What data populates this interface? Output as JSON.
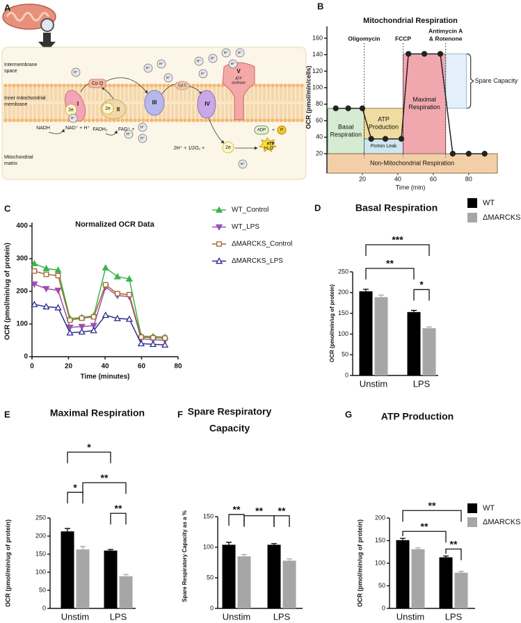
{
  "panel_labels": [
    "A",
    "B",
    "C",
    "D",
    "E",
    "F",
    "G"
  ],
  "diagram": {
    "regions": [
      [
        "Intermembrane",
        "space"
      ],
      [
        "Inner mitochondrial",
        "membrane"
      ],
      [
        "Mitochondrial",
        "matrix"
      ]
    ],
    "complexes": [
      "I",
      "II",
      "III",
      "IV",
      "V"
    ],
    "atp_synthase": [
      "ATP",
      "synthase"
    ],
    "carriers": [
      "Co Q",
      "Cyt C"
    ],
    "proton": "H⁺",
    "electrons": "2e",
    "reactants": [
      "NADH",
      "NAD⁺ + H⁺",
      "FADH₂",
      "FAD⁺ +",
      "2H⁺ + 1/2O₂ +",
      "H₂O",
      "ADP",
      "+",
      "P",
      "ATP"
    ]
  },
  "chart_data": [
    {
      "type": "line",
      "title": "Mitochondrial Respiration",
      "y_label": "OCR (pmol/min/cells)",
      "x_label": "Time (min)",
      "x": [
        5,
        12,
        20,
        25,
        33,
        42,
        46,
        55,
        64,
        71,
        80,
        89
      ],
      "series": [
        {
          "color": "#222222",
          "marker": "circle",
          "filled": true,
          "values": [
            75,
            75,
            75,
            38,
            38,
            38,
            141,
            141,
            141,
            20,
            20,
            20
          ]
        }
      ],
      "xlim": [
        0,
        95
      ],
      "xticks": [
        20,
        40,
        60,
        80
      ],
      "ylim": [
        15,
        165
      ],
      "yticks": [
        20,
        40,
        60,
        80,
        100,
        120,
        140,
        160
      ],
      "injections": [
        {
          "label": [
            "Oligomycin"
          ],
          "x": 21
        },
        {
          "label": [
            "FCCP"
          ],
          "x": 43
        },
        {
          "label": [
            "Antimycin A",
            "& Rotenone"
          ],
          "x": 67
        }
      ],
      "regions": [
        [
          "Basal",
          "Respiration"
        ],
        [
          "ATP",
          "Production"
        ],
        [
          "Porton Leak"
        ],
        [
          "Maximal",
          "Respiration"
        ],
        [
          "Spare Capacity"
        ],
        [
          "Non-Mitochondrial Respiration"
        ]
      ]
    },
    {
      "type": "line",
      "title": "Normalized OCR Data",
      "y_label": "OCR (pmol/min/ug of protein)",
      "x_label": "Time (minutes)",
      "x": [
        1.3,
        7.8,
        14.3,
        20.8,
        27.3,
        33.8,
        40.3,
        46.8,
        53.3,
        59.8,
        66.3,
        72.8
      ],
      "series": [
        {
          "name": "WT_Control",
          "color": "#3cb44b",
          "marker": "triangle-up",
          "filled": true,
          "values": [
            285,
            270,
            265,
            117,
            120,
            125,
            272,
            245,
            238,
            63,
            62,
            60
          ]
        },
        {
          "name": "WT_LPS",
          "color": "#9b4fb0",
          "marker": "triangle-down",
          "filled": true,
          "values": [
            222,
            208,
            203,
            90,
            92,
            95,
            213,
            187,
            184,
            55,
            52,
            50
          ]
        },
        {
          "name": "ΔMARCKS_Control",
          "color": "#a0652a",
          "marker": "square",
          "filled": false,
          "values": [
            262,
            252,
            248,
            112,
            118,
            122,
            220,
            193,
            190,
            60,
            58,
            57
          ]
        },
        {
          "name": "ΔMARCKS_LPS",
          "color": "#2b2b8c",
          "marker": "triangle-up",
          "filled": false,
          "values": [
            160,
            153,
            150,
            73,
            76,
            80,
            127,
            117,
            115,
            40,
            38,
            36
          ]
        }
      ],
      "xlim": [
        0,
        80
      ],
      "xticks": [
        0,
        20,
        40,
        60,
        80
      ],
      "ylim": [
        0,
        400
      ],
      "yticks": [
        0,
        100,
        200,
        300,
        400
      ],
      "legend": true
    },
    {
      "type": "bar",
      "title": "Basal Respiration",
      "y_label": "OCR (pmol/min/ug of protein)",
      "categories": [
        "Unstim",
        "LPS"
      ],
      "series": [
        {
          "name": "WT",
          "color": "#000000",
          "values": [
            203,
            153
          ],
          "errors": [
            5,
            4
          ]
        },
        {
          "name": "ΔMARCKS",
          "color": "#a6a6a6",
          "values": [
            189,
            114
          ],
          "errors": [
            5,
            3
          ]
        }
      ],
      "ylim": [
        0,
        250
      ],
      "yticks": [
        0,
        50,
        100,
        150,
        200,
        250
      ],
      "legend": true,
      "comparisons": [
        {
          "label": "**",
          "bars": [
            [
              0,
              0
            ],
            [
              1,
              0
            ]
          ]
        },
        {
          "label": "*",
          "bars": [
            [
              1,
              0
            ],
            [
              1,
              1
            ]
          ]
        },
        {
          "label": "***",
          "bars": [
            [
              0,
              0
            ],
            [
              1,
              1
            ]
          ]
        }
      ]
    },
    {
      "type": "bar",
      "title": "Maximal Respiration",
      "y_label": "OCR (pmol/min/ug of protein)",
      "categories": [
        "Unstim",
        "LPS"
      ],
      "series": [
        {
          "name": "WT",
          "color": "#000000",
          "values": [
            213,
            160
          ],
          "errors": [
            8,
            3
          ]
        },
        {
          "name": "ΔMARCKS",
          "color": "#a6a6a6",
          "values": [
            163,
            89
          ],
          "errors": [
            8,
            5
          ]
        }
      ],
      "ylim": [
        0,
        250
      ],
      "yticks": [
        0,
        50,
        100,
        150,
        200,
        250
      ],
      "legend": false,
      "comparisons": [
        {
          "label": "*",
          "bars": [
            [
              0,
              0
            ],
            [
              0,
              1
            ]
          ]
        },
        {
          "label": "**",
          "bars": [
            [
              1,
              0
            ],
            [
              1,
              1
            ]
          ]
        },
        {
          "label": "**",
          "bars": [
            [
              0,
              1
            ],
            [
              1,
              1
            ]
          ]
        },
        {
          "label": "*",
          "bars": [
            [
              0,
              0
            ],
            [
              1,
              0
            ]
          ]
        }
      ]
    },
    {
      "type": "bar",
      "title": [
        "Spare Respiratory",
        "Capacity"
      ],
      "y_label": "Spare Respiratory Capacity as a %",
      "categories": [
        "Unstim",
        "LPS"
      ],
      "series": [
        {
          "name": "WT",
          "color": "#000000",
          "values": [
            104,
            104
          ],
          "errors": [
            4,
            2
          ]
        },
        {
          "name": "ΔMARCKS",
          "color": "#a6a6a6",
          "values": [
            85,
            78
          ],
          "errors": [
            3,
            3
          ]
        }
      ],
      "ylim": [
        0,
        150
      ],
      "yticks": [
        0,
        50,
        100,
        150
      ],
      "legend": false,
      "comparisons": [
        {
          "label": "**",
          "bars": [
            [
              0,
              0
            ],
            [
              0,
              1
            ]
          ]
        },
        {
          "label": "**",
          "bars": [
            [
              0,
              1
            ],
            [
              1,
              0
            ]
          ]
        },
        {
          "label": "**",
          "bars": [
            [
              1,
              0
            ],
            [
              1,
              1
            ]
          ]
        }
      ]
    },
    {
      "type": "bar",
      "title": "ATP Production",
      "y_label": "OCR (pmol/min/ug of protein)",
      "categories": [
        "Unstim",
        "LPS"
      ],
      "series": [
        {
          "name": "WT",
          "color": "#000000",
          "values": [
            151,
            113
          ],
          "errors": [
            4,
            3
          ]
        },
        {
          "name": "ΔMARCKS",
          "color": "#a6a6a6",
          "values": [
            131,
            79
          ],
          "errors": [
            3,
            3
          ]
        }
      ],
      "ylim": [
        0,
        200
      ],
      "yticks": [
        0,
        50,
        100,
        150,
        200
      ],
      "legend": true,
      "comparisons": [
        {
          "label": "**",
          "bars": [
            [
              0,
              0
            ],
            [
              1,
              0
            ]
          ]
        },
        {
          "label": "**",
          "bars": [
            [
              1,
              0
            ],
            [
              1,
              1
            ]
          ]
        },
        {
          "label": "**",
          "bars": [
            [
              0,
              0
            ],
            [
              1,
              1
            ]
          ]
        }
      ]
    }
  ]
}
